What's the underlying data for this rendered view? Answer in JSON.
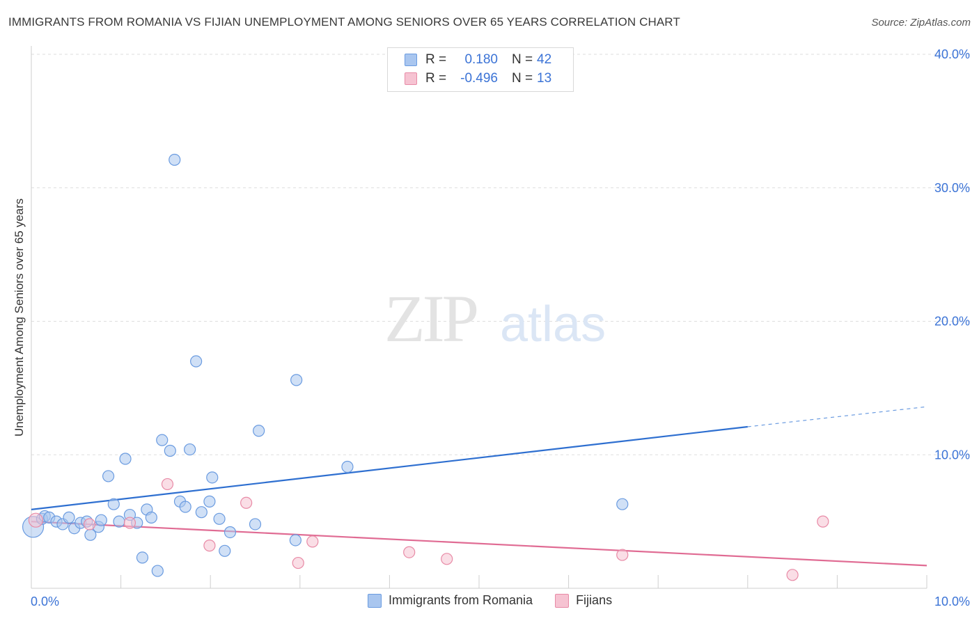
{
  "title": "IMMIGRANTS FROM ROMANIA VS FIJIAN UNEMPLOYMENT AMONG SENIORS OVER 65 YEARS CORRELATION CHART",
  "source": "Source: ZipAtlas.com",
  "watermark": {
    "zip": "ZIP",
    "atlas": "atlas"
  },
  "legend": {
    "rows": [
      {
        "r_label": "R =",
        "r_value": "0.180",
        "n_label": "N =",
        "n_value": "42",
        "color": "#a9c6ef",
        "border": "#6a9be0"
      },
      {
        "r_label": "R =",
        "r_value": "-0.496",
        "n_label": "N =",
        "n_value": "13",
        "color": "#f6c3d2",
        "border": "#e88aa6"
      }
    ]
  },
  "bottom_legend": {
    "items": [
      {
        "label": "Immigrants from Romania",
        "color": "#a9c6ef",
        "border": "#6a9be0"
      },
      {
        "label": "Fijians",
        "color": "#f6c3d2",
        "border": "#e88aa6"
      }
    ]
  },
  "chart_data": {
    "type": "scatter",
    "title": "IMMIGRANTS FROM ROMANIA VS FIJIAN UNEMPLOYMENT AMONG SENIORS OVER 65 YEARS CORRELATION CHART",
    "xlabel": "",
    "ylabel": "Unemployment Among Seniors over 65 years",
    "xlim": [
      0,
      10
    ],
    "ylim": [
      0,
      40
    ],
    "x_tick_labels": [
      "0.0%",
      "10.0%"
    ],
    "y_ticks": [
      10,
      20,
      30,
      40
    ],
    "y_tick_labels": [
      "10.0%",
      "20.0%",
      "30.0%",
      "40.0%"
    ],
    "series": [
      {
        "name": "Immigrants from Romania",
        "color": "#a9c6ef",
        "edge": "#6a9be0",
        "points": [
          [
            0.02,
            4.6
          ],
          [
            0.12,
            5.2
          ],
          [
            0.15,
            5.4
          ],
          [
            0.2,
            5.3
          ],
          [
            0.28,
            5.0
          ],
          [
            0.35,
            4.8
          ],
          [
            0.42,
            5.3
          ],
          [
            0.48,
            4.5
          ],
          [
            0.55,
            4.9
          ],
          [
            0.62,
            5.0
          ],
          [
            0.66,
            4.0
          ],
          [
            0.75,
            4.6
          ],
          [
            0.78,
            5.1
          ],
          [
            0.86,
            8.4
          ],
          [
            0.92,
            6.3
          ],
          [
            0.98,
            5.0
          ],
          [
            1.05,
            9.7
          ],
          [
            1.1,
            5.5
          ],
          [
            1.18,
            4.9
          ],
          [
            1.24,
            2.3
          ],
          [
            1.29,
            5.9
          ],
          [
            1.34,
            5.3
          ],
          [
            1.41,
            1.3
          ],
          [
            1.46,
            11.1
          ],
          [
            1.55,
            10.3
          ],
          [
            1.6,
            32.1
          ],
          [
            1.66,
            6.5
          ],
          [
            1.72,
            6.1
          ],
          [
            1.77,
            10.4
          ],
          [
            1.84,
            17.0
          ],
          [
            1.9,
            5.7
          ],
          [
            1.99,
            6.5
          ],
          [
            2.02,
            8.3
          ],
          [
            2.1,
            5.2
          ],
          [
            2.16,
            2.8
          ],
          [
            2.22,
            4.2
          ],
          [
            2.5,
            4.8
          ],
          [
            2.54,
            11.8
          ],
          [
            2.95,
            3.6
          ],
          [
            2.96,
            15.6
          ],
          [
            3.53,
            9.1
          ],
          [
            6.6,
            6.3
          ]
        ]
      },
      {
        "name": "Fijians",
        "color": "#f6c3d2",
        "edge": "#e88aa6",
        "points": [
          [
            0.05,
            5.1
          ],
          [
            0.65,
            4.8
          ],
          [
            1.1,
            4.9
          ],
          [
            1.52,
            7.8
          ],
          [
            1.99,
            3.2
          ],
          [
            2.4,
            6.4
          ],
          [
            2.98,
            1.9
          ],
          [
            3.14,
            3.5
          ],
          [
            4.22,
            2.7
          ],
          [
            4.64,
            2.2
          ],
          [
            6.6,
            2.5
          ],
          [
            8.5,
            1.0
          ],
          [
            8.84,
            5.0
          ]
        ]
      }
    ],
    "trendlines": [
      {
        "series": "Immigrants from Romania",
        "x_start": 0,
        "y_start": 5.9,
        "x_end_solid": 8.0,
        "y_end_solid": 12.1,
        "x_end_dashed": 10.0,
        "y_end_dashed": 13.6
      },
      {
        "series": "Fijians",
        "x_start": 0,
        "y_start": 5.0,
        "x_end": 10.0,
        "y_end": 1.7
      }
    ],
    "legend_position": "top-center"
  }
}
